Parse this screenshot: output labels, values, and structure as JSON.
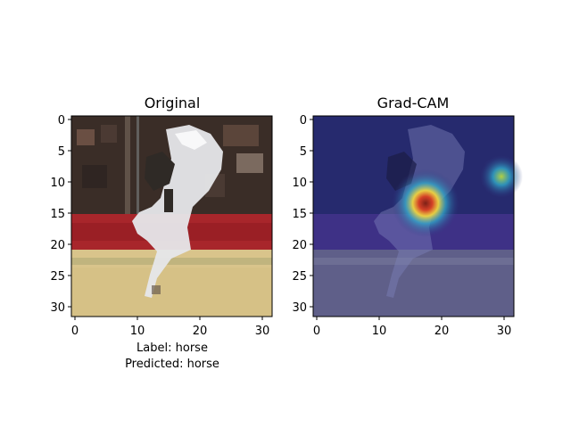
{
  "figure": {
    "panels": [
      {
        "id": "original",
        "title": "Original",
        "x_ticks": [
          "0",
          "10",
          "20",
          "30"
        ],
        "y_ticks": [
          "0",
          "5",
          "10",
          "15",
          "20",
          "25",
          "30"
        ],
        "image_desc": "pixelated horse (white) rearing in arena; red barrier; sandy ground",
        "colors": {
          "crowd": "#3b2b23",
          "barrier": "#a8262b",
          "ground_light": "#d9c48b",
          "ground_dark": "#c7b277",
          "horse": "#e6e7ea",
          "rider": "#2f2a26"
        }
      },
      {
        "id": "gradcam",
        "title": "Grad-CAM",
        "x_ticks": [
          "0",
          "10",
          "20",
          "30"
        ],
        "y_ticks": [
          "0",
          "5",
          "10",
          "15",
          "20",
          "25",
          "30"
        ],
        "image_desc": "Grad-CAM overlay: dark blue background with heat spot near (17,14) and small spot near (30,9)",
        "colors": {
          "base": "#2a2f7a",
          "barrier": "#3b2c86",
          "ground": "#5a5a86",
          "hot_center": "#7a1a10",
          "hot_mid": "#f0d43a",
          "hot_outer": "#2aa7c9"
        }
      }
    ],
    "caption": {
      "line1": "Label: horse",
      "line2": "Predicted: horse"
    }
  }
}
